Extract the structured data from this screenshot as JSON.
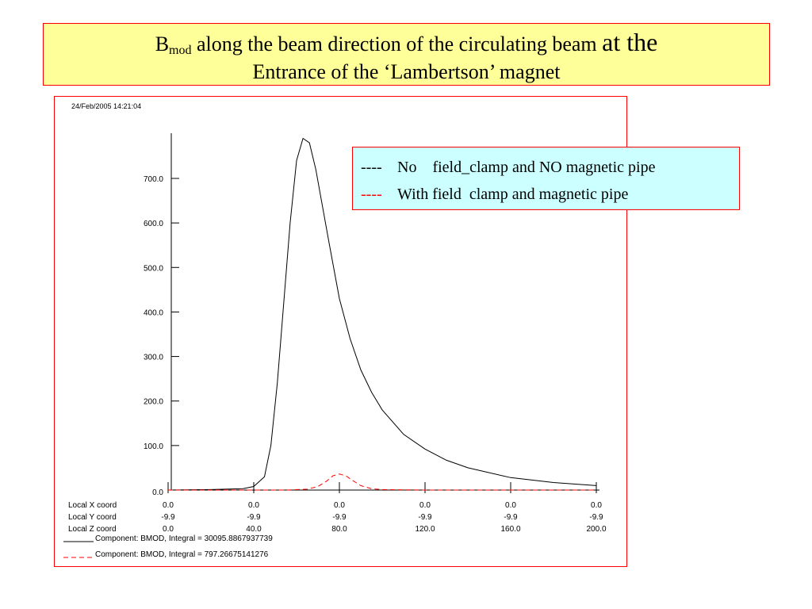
{
  "title": {
    "b_letter": "B",
    "b_subscript": "mod",
    "line1_text": " along the beam direction of the circulating beam ",
    "line1_big": "at the",
    "line2": "Entrance of the ‘Lambertson’ magnet"
  },
  "legend": {
    "row1": {
      "marker": "----",
      "label": "No    field_clamp and NO magnetic pipe",
      "color": "#000000"
    },
    "row2": {
      "marker": "----",
      "label": "With field  clamp and magnetic pipe",
      "color": "#ff0000"
    }
  },
  "chart_data": {
    "type": "line",
    "timestamp": "24/Feb/2005 14:21:04",
    "xlim": [
      0,
      200
    ],
    "ylim": [
      0,
      800
    ],
    "y_ticks": [
      0,
      100,
      200,
      300,
      400,
      500,
      600,
      700
    ],
    "y_tick_labels": [
      "0.0",
      "100.0",
      "200.0",
      "300.0",
      "400.0",
      "500.0",
      "600.0",
      "700.0"
    ],
    "x_ticks": [
      0,
      40,
      80,
      120,
      160,
      200
    ],
    "coord_rows": [
      {
        "label": "Local X coord",
        "values": [
          "0.0",
          "0.0",
          "0.0",
          "0.0",
          "0.0",
          "0.0"
        ]
      },
      {
        "label": "Local Y coord",
        "values": [
          "-9.9",
          "-9.9",
          "-9.9",
          "-9.9",
          "-9.9",
          "-9.9"
        ]
      },
      {
        "label": "Local Z coord",
        "values": [
          "0.0",
          "40.0",
          "80.0",
          "120.0",
          "160.0",
          "200.0"
        ]
      }
    ],
    "series": [
      {
        "name": "Component: BMOD, Integral = 30095.8867937739",
        "color": "#000000",
        "style": "solid",
        "x": [
          0,
          20,
          35,
          40,
          45,
          48,
          51,
          54,
          57,
          60,
          63,
          66,
          69,
          72,
          75,
          80,
          85,
          90,
          95,
          100,
          110,
          120,
          130,
          140,
          160,
          180,
          200
        ],
        "y": [
          0,
          1,
          3,
          8,
          30,
          100,
          240,
          420,
          600,
          740,
          790,
          780,
          720,
          640,
          560,
          430,
          340,
          270,
          220,
          180,
          125,
          92,
          67,
          50,
          28,
          17,
          10
        ]
      },
      {
        "name": "Component: BMOD, Integral = 797.26675141276",
        "color": "#ff0000",
        "style": "dashed",
        "x": [
          0,
          40,
          55,
          65,
          70,
          74,
          77,
          80,
          83,
          86,
          90,
          95,
          100,
          120,
          160,
          200
        ],
        "y": [
          0,
          0,
          0,
          2,
          8,
          20,
          32,
          36,
          32,
          22,
          10,
          3,
          1,
          0,
          0,
          0
        ]
      }
    ]
  }
}
